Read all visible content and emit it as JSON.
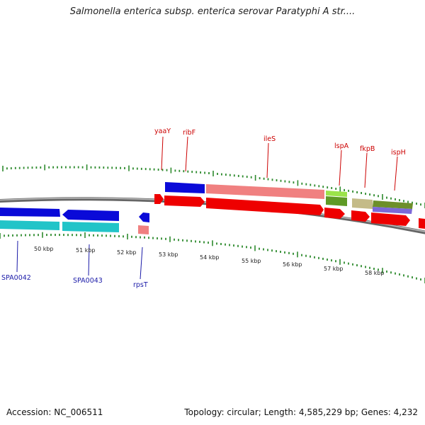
{
  "title": "Salmonella enterica subsp. enterica serovar Paratyphi A str....",
  "footer": {
    "accession": "Accession: NC_006511",
    "summary": "Topology: circular; Length: 4,585,229 bp; Genes: 4,232"
  },
  "colors": {
    "backbone": "#888888",
    "tick": "#2e8b2e",
    "red_label": "#cc0000",
    "blue_label": "#1a1aa8"
  },
  "kbp_labels": [
    "50 kbp",
    "51 kbp",
    "52 kbp",
    "53 kbp",
    "54 kbp",
    "55 kbp",
    "56 kbp",
    "57 kbp",
    "58 kbp"
  ],
  "gene_labels_top": [
    "yaaY",
    "ribF",
    "ileS",
    "lspA",
    "fkpB",
    "ispH"
  ],
  "gene_labels_bottom": [
    "SPA0042",
    "SPA0043",
    "rpsT"
  ]
}
